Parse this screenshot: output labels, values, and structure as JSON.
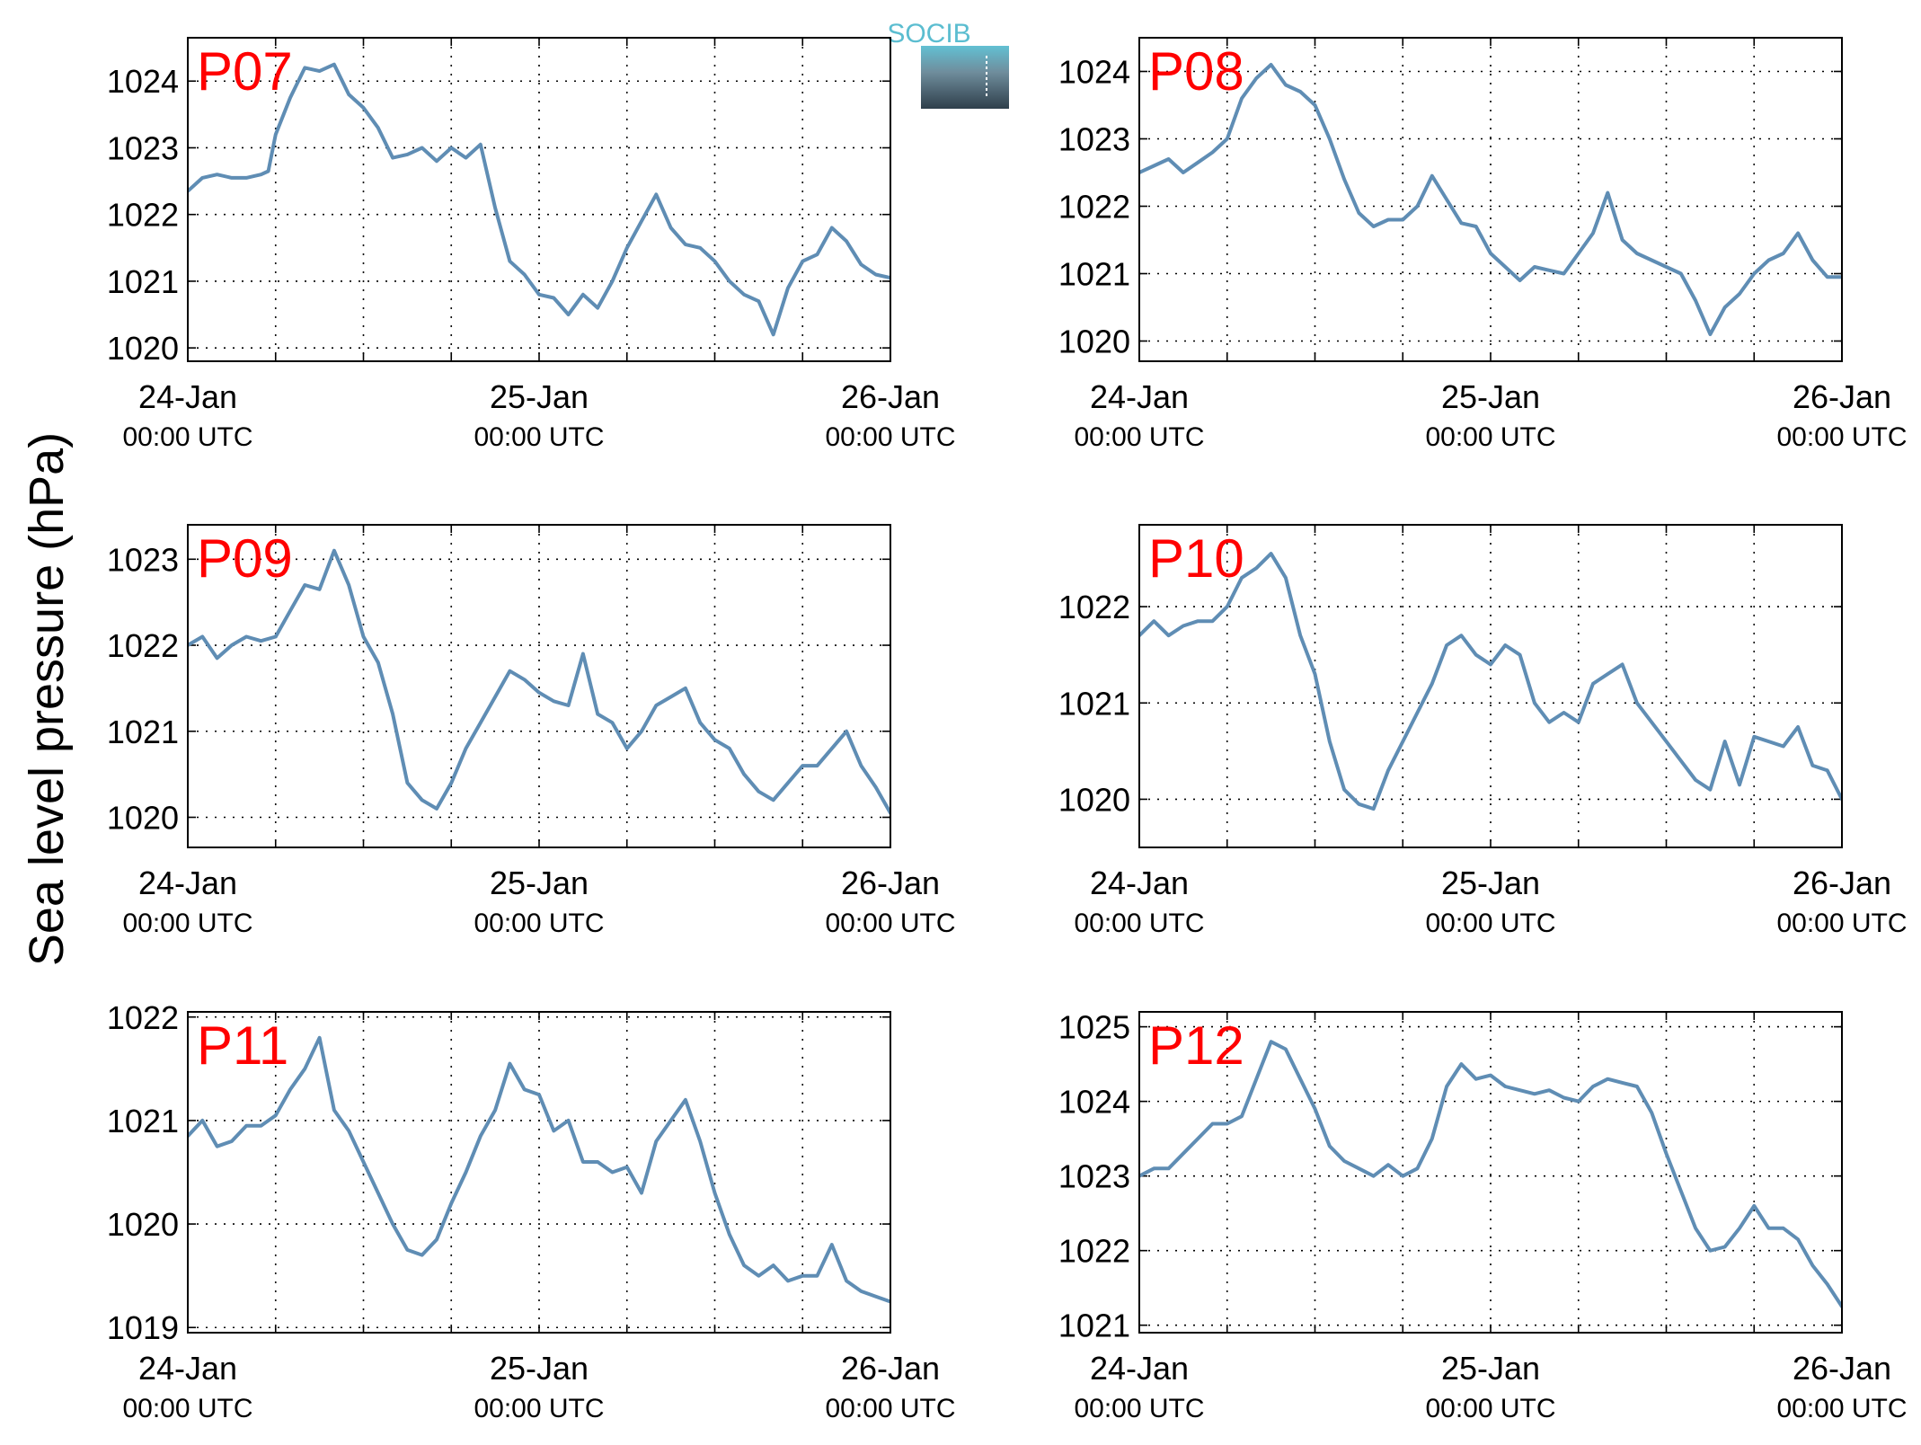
{
  "ylabel": "Sea level pressure (hPa)",
  "logo_text": "SOCIB",
  "colors": {
    "line": "#5f8db4",
    "station_label": "#ff0000",
    "logo_top": "#62c0d3",
    "logo_bottom": "#2f3f4b",
    "logo_text": "#5bbdd0"
  },
  "chart_data": [
    {
      "type": "line",
      "station": "P07",
      "x_ticks": [
        {
          "day": "24-Jan",
          "time": "00:00 UTC"
        },
        {
          "day": "25-Jan",
          "time": "00:00 UTC"
        },
        {
          "day": "26-Jan",
          "time": "00:00 UTC"
        }
      ],
      "xlim_hours": [
        0,
        48
      ],
      "ylim": [
        1019.8,
        1024.65
      ],
      "yticks": [
        1020,
        1021,
        1022,
        1023,
        1024
      ],
      "grid": true,
      "points": [
        [
          0,
          1022.35
        ],
        [
          1,
          1022.55
        ],
        [
          2,
          1022.6
        ],
        [
          3,
          1022.55
        ],
        [
          4,
          1022.55
        ],
        [
          5,
          1022.6
        ],
        [
          5.5,
          1022.65
        ],
        [
          6,
          1023.2
        ],
        [
          7,
          1023.75
        ],
        [
          8,
          1024.2
        ],
        [
          9,
          1024.15
        ],
        [
          10,
          1024.25
        ],
        [
          11,
          1023.8
        ],
        [
          12,
          1023.6
        ],
        [
          13,
          1023.3
        ],
        [
          14,
          1022.85
        ],
        [
          15,
          1022.9
        ],
        [
          16,
          1023.0
        ],
        [
          17,
          1022.8
        ],
        [
          18,
          1023.0
        ],
        [
          19,
          1022.85
        ],
        [
          20,
          1023.05
        ],
        [
          21,
          1022.1
        ],
        [
          22,
          1021.3
        ],
        [
          23,
          1021.1
        ],
        [
          24,
          1020.8
        ],
        [
          25,
          1020.75
        ],
        [
          26,
          1020.5
        ],
        [
          27,
          1020.8
        ],
        [
          28,
          1020.6
        ],
        [
          29,
          1021.0
        ],
        [
          30,
          1021.5
        ],
        [
          31,
          1021.9
        ],
        [
          32,
          1022.3
        ],
        [
          33,
          1021.8
        ],
        [
          34,
          1021.55
        ],
        [
          35,
          1021.5
        ],
        [
          36,
          1021.3
        ],
        [
          37,
          1021.0
        ],
        [
          38,
          1020.8
        ],
        [
          39,
          1020.7
        ],
        [
          40,
          1020.2
        ],
        [
          41,
          1020.9
        ],
        [
          42,
          1021.3
        ],
        [
          43,
          1021.4
        ],
        [
          44,
          1021.8
        ],
        [
          45,
          1021.6
        ],
        [
          46,
          1021.25
        ],
        [
          47,
          1021.1
        ],
        [
          48,
          1021.05
        ]
      ]
    },
    {
      "type": "line",
      "station": "P08",
      "x_ticks": [
        {
          "day": "24-Jan",
          "time": "00:00 UTC"
        },
        {
          "day": "25-Jan",
          "time": "00:00 UTC"
        },
        {
          "day": "26-Jan",
          "time": "00:00 UTC"
        }
      ],
      "xlim_hours": [
        0,
        48
      ],
      "ylim": [
        1019.7,
        1024.5
      ],
      "yticks": [
        1020,
        1021,
        1022,
        1023,
        1024
      ],
      "grid": true,
      "points": [
        [
          0,
          1022.5
        ],
        [
          1,
          1022.6
        ],
        [
          2,
          1022.7
        ],
        [
          3,
          1022.5
        ],
        [
          4,
          1022.65
        ],
        [
          5,
          1022.8
        ],
        [
          6,
          1023.0
        ],
        [
          7,
          1023.6
        ],
        [
          8,
          1023.9
        ],
        [
          9,
          1024.1
        ],
        [
          10,
          1023.8
        ],
        [
          11,
          1023.7
        ],
        [
          12,
          1023.5
        ],
        [
          13,
          1023.0
        ],
        [
          14,
          1022.4
        ],
        [
          15,
          1021.9
        ],
        [
          16,
          1021.7
        ],
        [
          17,
          1021.8
        ],
        [
          18,
          1021.8
        ],
        [
          19,
          1022.0
        ],
        [
          20,
          1022.45
        ],
        [
          21,
          1022.1
        ],
        [
          22,
          1021.75
        ],
        [
          23,
          1021.7
        ],
        [
          24,
          1021.3
        ],
        [
          25,
          1021.1
        ],
        [
          26,
          1020.9
        ],
        [
          27,
          1021.1
        ],
        [
          28,
          1021.05
        ],
        [
          29,
          1021.0
        ],
        [
          30,
          1021.3
        ],
        [
          31,
          1021.6
        ],
        [
          32,
          1022.2
        ],
        [
          33,
          1021.5
        ],
        [
          34,
          1021.3
        ],
        [
          35,
          1021.2
        ],
        [
          36,
          1021.1
        ],
        [
          37,
          1021.0
        ],
        [
          38,
          1020.6
        ],
        [
          39,
          1020.1
        ],
        [
          40,
          1020.5
        ],
        [
          41,
          1020.7
        ],
        [
          42,
          1021.0
        ],
        [
          43,
          1021.2
        ],
        [
          44,
          1021.3
        ],
        [
          45,
          1021.6
        ],
        [
          46,
          1021.2
        ],
        [
          47,
          1020.95
        ],
        [
          48,
          1020.95
        ]
      ]
    },
    {
      "type": "line",
      "station": "P09",
      "x_ticks": [
        {
          "day": "24-Jan",
          "time": "00:00 UTC"
        },
        {
          "day": "25-Jan",
          "time": "00:00 UTC"
        },
        {
          "day": "26-Jan",
          "time": "00:00 UTC"
        }
      ],
      "xlim_hours": [
        0,
        48
      ],
      "ylim": [
        1019.65,
        1023.4
      ],
      "yticks": [
        1020,
        1021,
        1022,
        1023
      ],
      "grid": true,
      "points": [
        [
          0,
          1022.0
        ],
        [
          1,
          1022.1
        ],
        [
          2,
          1021.85
        ],
        [
          3,
          1022.0
        ],
        [
          4,
          1022.1
        ],
        [
          5,
          1022.05
        ],
        [
          6,
          1022.1
        ],
        [
          7,
          1022.4
        ],
        [
          8,
          1022.7
        ],
        [
          9,
          1022.65
        ],
        [
          10,
          1023.1
        ],
        [
          11,
          1022.7
        ],
        [
          12,
          1022.1
        ],
        [
          13,
          1021.8
        ],
        [
          14,
          1021.2
        ],
        [
          15,
          1020.4
        ],
        [
          16,
          1020.2
        ],
        [
          17,
          1020.1
        ],
        [
          18,
          1020.4
        ],
        [
          19,
          1020.8
        ],
        [
          20,
          1021.1
        ],
        [
          21,
          1021.4
        ],
        [
          22,
          1021.7
        ],
        [
          23,
          1021.6
        ],
        [
          24,
          1021.45
        ],
        [
          25,
          1021.35
        ],
        [
          26,
          1021.3
        ],
        [
          27,
          1021.9
        ],
        [
          28,
          1021.2
        ],
        [
          29,
          1021.1
        ],
        [
          30,
          1020.8
        ],
        [
          31,
          1021.0
        ],
        [
          32,
          1021.3
        ],
        [
          33,
          1021.4
        ],
        [
          34,
          1021.5
        ],
        [
          35,
          1021.1
        ],
        [
          36,
          1020.9
        ],
        [
          37,
          1020.8
        ],
        [
          38,
          1020.5
        ],
        [
          39,
          1020.3
        ],
        [
          40,
          1020.2
        ],
        [
          41,
          1020.4
        ],
        [
          42,
          1020.6
        ],
        [
          43,
          1020.6
        ],
        [
          44,
          1020.8
        ],
        [
          45,
          1021.0
        ],
        [
          46,
          1020.6
        ],
        [
          47,
          1020.35
        ],
        [
          48,
          1020.05
        ]
      ]
    },
    {
      "type": "line",
      "station": "P10",
      "x_ticks": [
        {
          "day": "24-Jan",
          "time": "00:00 UTC"
        },
        {
          "day": "25-Jan",
          "time": "00:00 UTC"
        },
        {
          "day": "26-Jan",
          "time": "00:00 UTC"
        }
      ],
      "xlim_hours": [
        0,
        48
      ],
      "ylim": [
        1019.5,
        1022.85
      ],
      "yticks": [
        1020,
        1021,
        1022
      ],
      "grid": true,
      "points": [
        [
          0,
          1021.7
        ],
        [
          1,
          1021.85
        ],
        [
          2,
          1021.7
        ],
        [
          3,
          1021.8
        ],
        [
          4,
          1021.85
        ],
        [
          5,
          1021.85
        ],
        [
          6,
          1022.0
        ],
        [
          7,
          1022.3
        ],
        [
          8,
          1022.4
        ],
        [
          9,
          1022.55
        ],
        [
          10,
          1022.3
        ],
        [
          11,
          1021.7
        ],
        [
          12,
          1021.3
        ],
        [
          13,
          1020.6
        ],
        [
          14,
          1020.1
        ],
        [
          15,
          1019.95
        ],
        [
          16,
          1019.9
        ],
        [
          17,
          1020.3
        ],
        [
          18,
          1020.6
        ],
        [
          19,
          1020.9
        ],
        [
          20,
          1021.2
        ],
        [
          21,
          1021.6
        ],
        [
          22,
          1021.7
        ],
        [
          23,
          1021.5
        ],
        [
          24,
          1021.4
        ],
        [
          25,
          1021.6
        ],
        [
          26,
          1021.5
        ],
        [
          27,
          1021.0
        ],
        [
          28,
          1020.8
        ],
        [
          29,
          1020.9
        ],
        [
          30,
          1020.8
        ],
        [
          31,
          1021.2
        ],
        [
          32,
          1021.3
        ],
        [
          33,
          1021.4
        ],
        [
          34,
          1021.0
        ],
        [
          35,
          1020.8
        ],
        [
          36,
          1020.6
        ],
        [
          37,
          1020.4
        ],
        [
          38,
          1020.2
        ],
        [
          39,
          1020.1
        ],
        [
          40,
          1020.6
        ],
        [
          41,
          1020.15
        ],
        [
          42,
          1020.65
        ],
        [
          43,
          1020.6
        ],
        [
          44,
          1020.55
        ],
        [
          45,
          1020.75
        ],
        [
          46,
          1020.35
        ],
        [
          47,
          1020.3
        ],
        [
          48,
          1020.0
        ]
      ]
    },
    {
      "type": "line",
      "station": "P11",
      "x_ticks": [
        {
          "day": "24-Jan",
          "time": "00:00 UTC"
        },
        {
          "day": "25-Jan",
          "time": "00:00 UTC"
        },
        {
          "day": "26-Jan",
          "time": "00:00 UTC"
        }
      ],
      "xlim_hours": [
        0,
        48
      ],
      "ylim": [
        1018.95,
        1022.05
      ],
      "yticks": [
        1019,
        1020,
        1021,
        1022
      ],
      "grid": true,
      "points": [
        [
          0,
          1020.85
        ],
        [
          1,
          1021.0
        ],
        [
          2,
          1020.75
        ],
        [
          3,
          1020.8
        ],
        [
          4,
          1020.95
        ],
        [
          5,
          1020.95
        ],
        [
          6,
          1021.05
        ],
        [
          7,
          1021.3
        ],
        [
          8,
          1021.5
        ],
        [
          9,
          1021.8
        ],
        [
          10,
          1021.1
        ],
        [
          11,
          1020.9
        ],
        [
          12,
          1020.6
        ],
        [
          13,
          1020.3
        ],
        [
          14,
          1020.0
        ],
        [
          15,
          1019.75
        ],
        [
          16,
          1019.7
        ],
        [
          17,
          1019.85
        ],
        [
          18,
          1020.2
        ],
        [
          19,
          1020.5
        ],
        [
          20,
          1020.85
        ],
        [
          21,
          1021.1
        ],
        [
          22,
          1021.55
        ],
        [
          23,
          1021.3
        ],
        [
          24,
          1021.25
        ],
        [
          25,
          1020.9
        ],
        [
          26,
          1021.0
        ],
        [
          27,
          1020.6
        ],
        [
          28,
          1020.6
        ],
        [
          29,
          1020.5
        ],
        [
          30,
          1020.55
        ],
        [
          31,
          1020.3
        ],
        [
          32,
          1020.8
        ],
        [
          33,
          1021.0
        ],
        [
          34,
          1021.2
        ],
        [
          35,
          1020.8
        ],
        [
          36,
          1020.3
        ],
        [
          37,
          1019.9
        ],
        [
          38,
          1019.6
        ],
        [
          39,
          1019.5
        ],
        [
          40,
          1019.6
        ],
        [
          41,
          1019.45
        ],
        [
          42,
          1019.5
        ],
        [
          43,
          1019.5
        ],
        [
          44,
          1019.8
        ],
        [
          45,
          1019.45
        ],
        [
          46,
          1019.35
        ],
        [
          47,
          1019.3
        ],
        [
          48,
          1019.25
        ]
      ]
    },
    {
      "type": "line",
      "station": "P12",
      "x_ticks": [
        {
          "day": "24-Jan",
          "time": "00:00 UTC"
        },
        {
          "day": "25-Jan",
          "time": "00:00 UTC"
        },
        {
          "day": "26-Jan",
          "time": "00:00 UTC"
        }
      ],
      "xlim_hours": [
        0,
        48
      ],
      "ylim": [
        1020.9,
        1025.2
      ],
      "yticks": [
        1021,
        1022,
        1023,
        1024,
        1025
      ],
      "grid": true,
      "points": [
        [
          0,
          1023.0
        ],
        [
          1,
          1023.1
        ],
        [
          2,
          1023.1
        ],
        [
          3,
          1023.3
        ],
        [
          4,
          1023.5
        ],
        [
          5,
          1023.7
        ],
        [
          6,
          1023.7
        ],
        [
          7,
          1023.8
        ],
        [
          8,
          1024.3
        ],
        [
          9,
          1024.8
        ],
        [
          10,
          1024.7
        ],
        [
          11,
          1024.3
        ],
        [
          12,
          1023.9
        ],
        [
          13,
          1023.4
        ],
        [
          14,
          1023.2
        ],
        [
          15,
          1023.1
        ],
        [
          16,
          1023.0
        ],
        [
          17,
          1023.15
        ],
        [
          18,
          1023.0
        ],
        [
          19,
          1023.1
        ],
        [
          20,
          1023.5
        ],
        [
          21,
          1024.2
        ],
        [
          22,
          1024.5
        ],
        [
          23,
          1024.3
        ],
        [
          24,
          1024.35
        ],
        [
          25,
          1024.2
        ],
        [
          26,
          1024.15
        ],
        [
          27,
          1024.1
        ],
        [
          28,
          1024.15
        ],
        [
          29,
          1024.05
        ],
        [
          30,
          1024.0
        ],
        [
          31,
          1024.2
        ],
        [
          32,
          1024.3
        ],
        [
          33,
          1024.25
        ],
        [
          34,
          1024.2
        ],
        [
          35,
          1023.85
        ],
        [
          36,
          1023.3
        ],
        [
          37,
          1022.8
        ],
        [
          38,
          1022.3
        ],
        [
          39,
          1022.0
        ],
        [
          40,
          1022.05
        ],
        [
          41,
          1022.3
        ],
        [
          42,
          1022.6
        ],
        [
          43,
          1022.3
        ],
        [
          44,
          1022.3
        ],
        [
          45,
          1022.15
        ],
        [
          46,
          1021.8
        ],
        [
          47,
          1021.55
        ],
        [
          48,
          1021.25
        ]
      ]
    }
  ]
}
